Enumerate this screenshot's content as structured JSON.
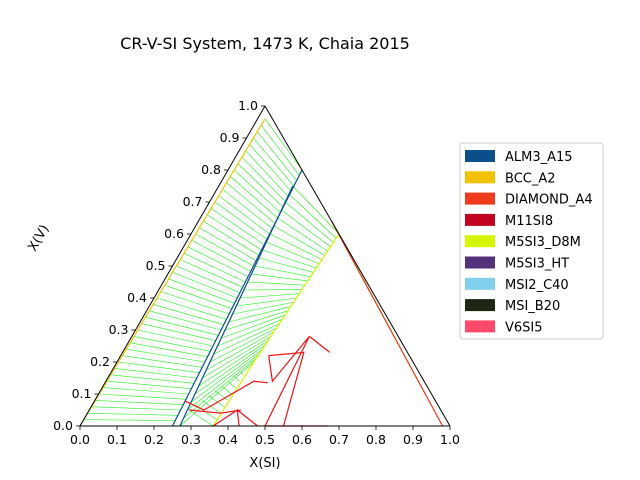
{
  "chart_data": {
    "type": "ternary",
    "title": "CR-V-SI System, 1473 K, Chaia 2015",
    "xlabel": "X(SI)",
    "ylabel": "X(V)",
    "xlim": [
      0,
      1
    ],
    "ylim": [
      0,
      1
    ],
    "x_ticks": [
      "0.0",
      "0.1",
      "0.2",
      "0.3",
      "0.4",
      "0.5",
      "0.6",
      "0.7",
      "0.8",
      "0.9",
      "1.0"
    ],
    "y_ticks": [
      "0.0",
      "0.1",
      "0.2",
      "0.3",
      "0.4",
      "0.5",
      "0.6",
      "0.7",
      "0.8",
      "0.9",
      "1.0"
    ],
    "legend_position": "right",
    "legend": [
      {
        "label": "ALM3_A15",
        "color": "#0a4f8a"
      },
      {
        "label": "BCC_A2",
        "color": "#f2c200"
      },
      {
        "label": "DIAMOND_A4",
        "color": "#ef3b1d"
      },
      {
        "label": "M11SI8",
        "color": "#c10520"
      },
      {
        "label": "M5SI3_D8M",
        "color": "#d6f500"
      },
      {
        "label": "M5SI3_HT",
        "color": "#54327b"
      },
      {
        "label": "MSI2_C40",
        "color": "#7fcfed"
      },
      {
        "label": "MSI_B20",
        "color": "#1e2614"
      },
      {
        "label": "V6SI5",
        "color": "#ff4a6a"
      }
    ],
    "boundaries": [
      {
        "phase": "BCC_A2",
        "points": [
          [
            0,
            0
          ],
          [
            0.02,
            0.96
          ]
        ]
      },
      {
        "phase": "ALM3_A15",
        "points": [
          [
            0.25,
            0
          ],
          [
            0.2,
            0.8
          ]
        ]
      },
      {
        "phase": "ALM3_A15",
        "points": [
          [
            0.27,
            0
          ],
          [
            0.2,
            0.75
          ]
        ]
      },
      {
        "phase": "M5SI3_D8M",
        "points": [
          [
            0.36,
            0.0
          ],
          [
            0.37,
            0.2
          ],
          [
            0.4,
            0.6
          ]
        ]
      },
      {
        "phase": "DIAMOND_A4",
        "points": [
          [
            0.98,
            0.0
          ],
          [
            0.36,
            0.64
          ]
        ]
      },
      {
        "phase": "M11SI8",
        "points": [
          [
            0.245,
            0.078
          ],
          [
            0.31,
            0.05
          ],
          [
            0.4,
            0.14
          ],
          [
            0.44,
            0.135
          ]
        ]
      },
      {
        "phase": "M11SI8",
        "points": [
          [
            0.27,
            0.05
          ],
          [
            0.36,
            0.04
          ],
          [
            0.41,
            0.05
          ]
        ]
      },
      {
        "phase": "M11SI8",
        "points": [
          [
            0.36,
            0.0
          ],
          [
            0.4,
            0.05
          ],
          [
            0.43,
            0.0
          ]
        ]
      },
      {
        "phase": "M11SI8",
        "points": [
          [
            0.4,
            0.05
          ],
          [
            0.48,
            0.0
          ]
        ]
      },
      {
        "phase": "M11SI8",
        "points": [
          [
            0.4,
            0.22
          ],
          [
            0.45,
            0.14
          ],
          [
            0.48,
            0.28
          ],
          [
            0.5,
            0.0
          ]
        ]
      },
      {
        "phase": "M11SI8",
        "points": [
          [
            0.4,
            0.22
          ],
          [
            0.49,
            0.23
          ],
          [
            0.55,
            0.0
          ]
        ]
      },
      {
        "phase": "M11SI8",
        "points": [
          [
            0.48,
            0.28
          ],
          [
            0.56,
            0.23
          ]
        ]
      },
      {
        "phase": "M11SI8",
        "points": [
          [
            0.5,
            0.0
          ],
          [
            0.67,
            0.0
          ]
        ]
      }
    ]
  }
}
